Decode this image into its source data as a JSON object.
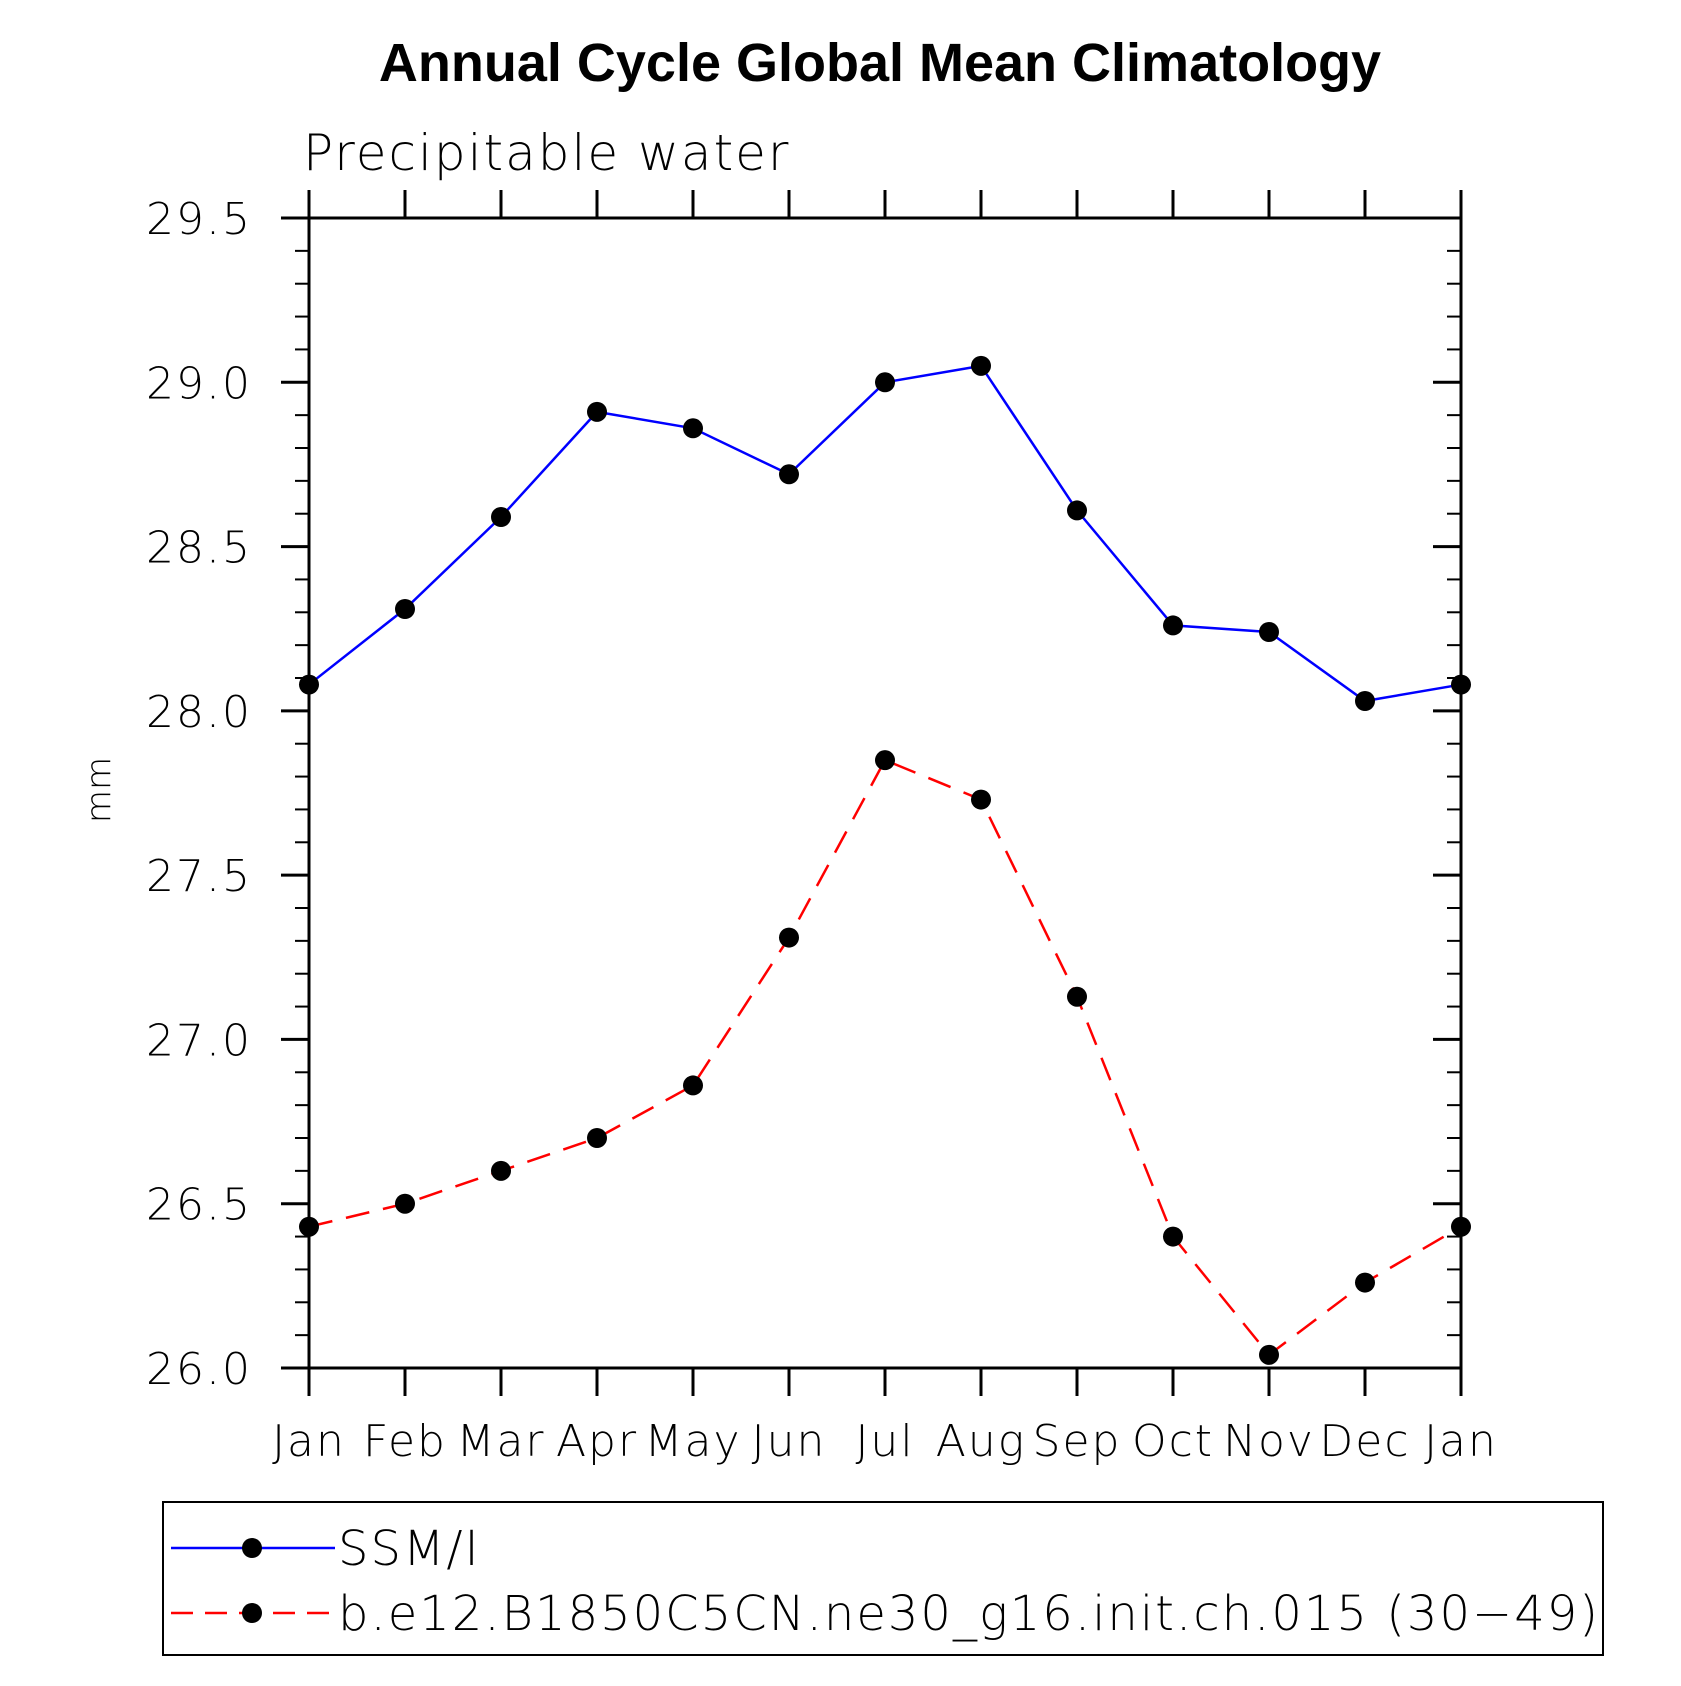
{
  "chart_data": {
    "type": "line",
    "title": "Annual Cycle Global Mean Climatology",
    "subtitle": "Precipitable water",
    "xlabel": "",
    "ylabel": "mm",
    "categories": [
      "Jan",
      "Feb",
      "Mar",
      "Apr",
      "May",
      "Jun",
      "Jul",
      "Aug",
      "Sep",
      "Oct",
      "Nov",
      "Dec",
      "Jan"
    ],
    "ylim": [
      26.0,
      29.5
    ],
    "yticks": [
      "26.0",
      "26.5",
      "27.0",
      "27.5",
      "28.0",
      "28.5",
      "29.0",
      "29.5"
    ],
    "grid": false,
    "legend_position": "bottom",
    "series": [
      {
        "name": "SSM/I",
        "color": "#0000ff",
        "line_style": "solid",
        "marker": "filled-circle",
        "values": [
          28.08,
          28.31,
          28.59,
          28.91,
          28.86,
          28.72,
          29.0,
          29.05,
          28.61,
          28.26,
          28.24,
          28.03,
          28.08
        ]
      },
      {
        "name": "b.e12.B1850C5CN.ne30_g16.init.ch.015 (30−49)",
        "color": "#ff0000",
        "line_style": "dashed",
        "marker": "filled-circle",
        "values": [
          26.43,
          26.5,
          26.6,
          26.7,
          26.86,
          27.31,
          27.85,
          27.73,
          27.13,
          26.4,
          26.04,
          26.26,
          26.43
        ]
      }
    ]
  }
}
